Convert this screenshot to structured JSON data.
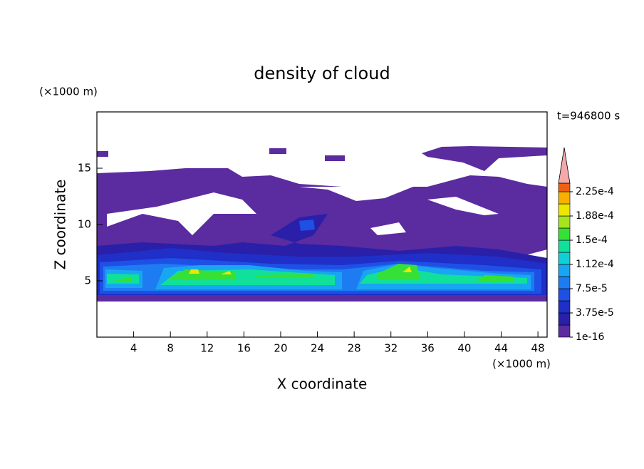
{
  "chart_data": {
    "type": "contour",
    "title": "density of cloud",
    "time_label": "t=946800 s",
    "x_label": "X coordinate",
    "y_label": "Z coordinate",
    "x_unit": "(×1000 m)",
    "y_unit": "(×1000 m)",
    "xlim": [
      0,
      49
    ],
    "xticks": [
      4,
      8,
      12,
      16,
      20,
      24,
      28,
      32,
      36,
      40,
      44,
      48
    ],
    "ylim": [
      0,
      20
    ],
    "yticks": [
      5,
      10,
      15
    ],
    "levels": [
      1e-16,
      1.875e-05,
      3.75e-05,
      5.625e-05,
      7.5e-05,
      9.375e-05,
      0.0001125,
      0.00013125,
      0.00015,
      0.00016875,
      0.0001875,
      0.00020625,
      0.000225
    ],
    "colors": [
      "#5b2ba0",
      "#2a1fa8",
      "#1f2fc8",
      "#1e50e6",
      "#1e7cf2",
      "#18a6f2",
      "#10cfd6",
      "#10e09a",
      "#36e036",
      "#a6e41e",
      "#ece600",
      "#f8b000",
      "#f06010"
    ],
    "extend_color": "#f4a8a8",
    "colorbar_ticks": [
      {
        "value": 1e-16,
        "label": "1e-16"
      },
      {
        "value": 3.75e-05,
        "label": "3.75e-5"
      },
      {
        "value": 7.5e-05,
        "label": "7.5e-5"
      },
      {
        "value": 0.0001125,
        "label": "1.12e-4"
      },
      {
        "value": 0.00015,
        "label": "1.5e-4"
      },
      {
        "value": 0.0001875,
        "label": "1.88e-4"
      },
      {
        "value": 0.000225,
        "label": "2.25e-4"
      }
    ]
  }
}
